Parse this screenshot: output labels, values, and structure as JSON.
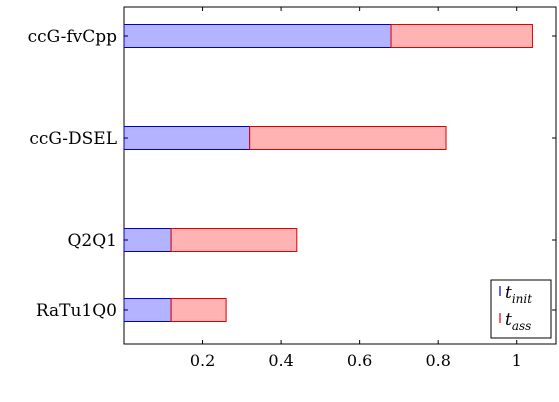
{
  "chart_data": {
    "type": "bar",
    "orientation": "horizontal",
    "stacked": true,
    "categories": [
      "ccG-fvCpp",
      "ccG-DSEL",
      "Q2Q1",
      "RaTu1Q0"
    ],
    "series": [
      {
        "name": "t",
        "name_subscript": "init",
        "values": [
          0.68,
          0.32,
          0.12,
          0.12
        ]
      },
      {
        "name": "t",
        "name_subscript": "ass",
        "values": [
          0.36,
          0.5,
          0.32,
          0.14
        ]
      }
    ],
    "x_ticks": [
      "0.2",
      "0.4",
      "0.6",
      "0.8",
      "1"
    ],
    "xlim": [
      0.0,
      1.1
    ],
    "grid": false,
    "legend_position": "bottom-right"
  },
  "colors": {
    "init_fill": "#b3b3ff",
    "init_stroke": "#0000cc",
    "ass_fill": "#ffb3b3",
    "ass_stroke": "#e00000",
    "axis": "#000000"
  }
}
